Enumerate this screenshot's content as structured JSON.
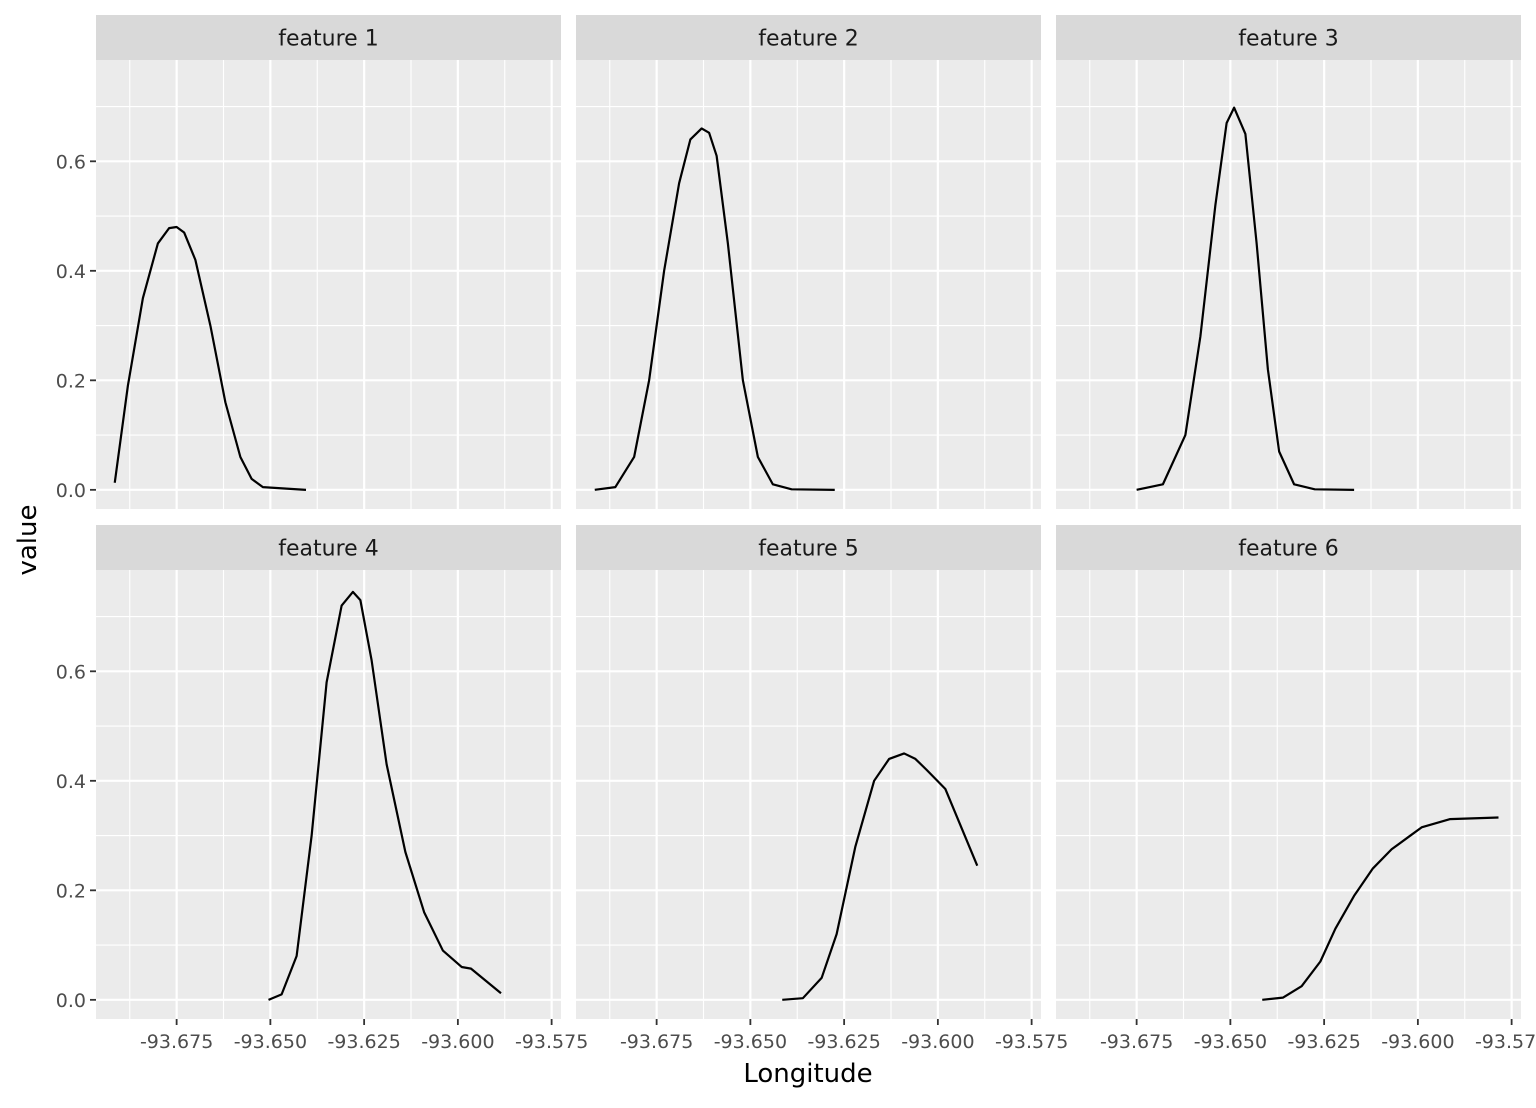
{
  "chart_data": {
    "type": "line",
    "layout": "facet-grid",
    "xlabel": "Longitude",
    "ylabel": "value",
    "xlim": [
      -93.6965,
      -93.5725
    ],
    "ylim": [
      -0.035,
      0.785
    ],
    "x_ticks": [
      -93.675,
      -93.65,
      -93.625,
      -93.6,
      -93.575
    ],
    "x_tick_labels": [
      "-93.675",
      "-93.650",
      "-93.625",
      "-93.600",
      "-93.575"
    ],
    "y_ticks": [
      0.0,
      0.2,
      0.4,
      0.6
    ],
    "y_tick_labels": [
      "0.0",
      "0.2",
      "0.4",
      "0.6"
    ],
    "grid": true,
    "colors": {
      "panel_bg": "#ebebeb",
      "strip_bg": "#d9d9d9",
      "grid": "#ffffff",
      "line": "#000000",
      "text": "#4d4d4d",
      "strip_text": "#1a1a1a"
    },
    "series": [
      {
        "name": "feature 1",
        "x": [
          -93.6915,
          -93.688,
          -93.684,
          -93.68,
          -93.677,
          -93.675,
          -93.673,
          -93.67,
          -93.666,
          -93.662,
          -93.658,
          -93.655,
          -93.652,
          -93.6405
        ],
        "y": [
          0.013,
          0.19,
          0.35,
          0.45,
          0.478,
          0.48,
          0.47,
          0.42,
          0.3,
          0.16,
          0.06,
          0.02,
          0.005,
          0.0
        ]
      },
      {
        "name": "feature 2",
        "x": [
          -93.6915,
          -93.686,
          -93.681,
          -93.677,
          -93.673,
          -93.669,
          -93.666,
          -93.663,
          -93.661,
          -93.659,
          -93.656,
          -93.652,
          -93.648,
          -93.644,
          -93.639,
          -93.6275
        ],
        "y": [
          0.0,
          0.005,
          0.06,
          0.2,
          0.4,
          0.56,
          0.64,
          0.66,
          0.652,
          0.61,
          0.45,
          0.2,
          0.06,
          0.01,
          0.001,
          0.0
        ]
      },
      {
        "name": "feature 3",
        "x": [
          -93.675,
          -93.668,
          -93.662,
          -93.658,
          -93.654,
          -93.651,
          -93.649,
          -93.646,
          -93.643,
          -93.64,
          -93.637,
          -93.633,
          -93.6275,
          -93.617
        ],
        "y": [
          0.0,
          0.01,
          0.1,
          0.28,
          0.52,
          0.67,
          0.698,
          0.65,
          0.45,
          0.22,
          0.07,
          0.01,
          0.001,
          0.0
        ]
      },
      {
        "name": "feature 4",
        "x": [
          -93.6505,
          -93.647,
          -93.643,
          -93.639,
          -93.635,
          -93.631,
          -93.628,
          -93.626,
          -93.623,
          -93.619,
          -93.614,
          -93.609,
          -93.604,
          -93.599,
          -93.5965,
          -93.5885
        ],
        "y": [
          0.0,
          0.01,
          0.08,
          0.3,
          0.58,
          0.72,
          0.745,
          0.73,
          0.62,
          0.43,
          0.27,
          0.16,
          0.09,
          0.06,
          0.057,
          0.012
        ]
      },
      {
        "name": "feature 5",
        "x": [
          -93.6415,
          -93.636,
          -93.631,
          -93.627,
          -93.622,
          -93.617,
          -93.613,
          -93.609,
          -93.606,
          -93.603,
          -93.598,
          -93.5895
        ],
        "y": [
          0.0,
          0.003,
          0.04,
          0.12,
          0.28,
          0.4,
          0.44,
          0.45,
          0.44,
          0.42,
          0.385,
          0.245
        ]
      },
      {
        "name": "feature 6",
        "x": [
          -93.6415,
          -93.636,
          -93.631,
          -93.626,
          -93.622,
          -93.617,
          -93.612,
          -93.607,
          -93.602,
          -93.599,
          -93.5915,
          -93.5785
        ],
        "y": [
          0.0,
          0.004,
          0.025,
          0.07,
          0.13,
          0.19,
          0.24,
          0.275,
          0.3,
          0.315,
          0.33,
          0.333
        ]
      }
    ]
  }
}
